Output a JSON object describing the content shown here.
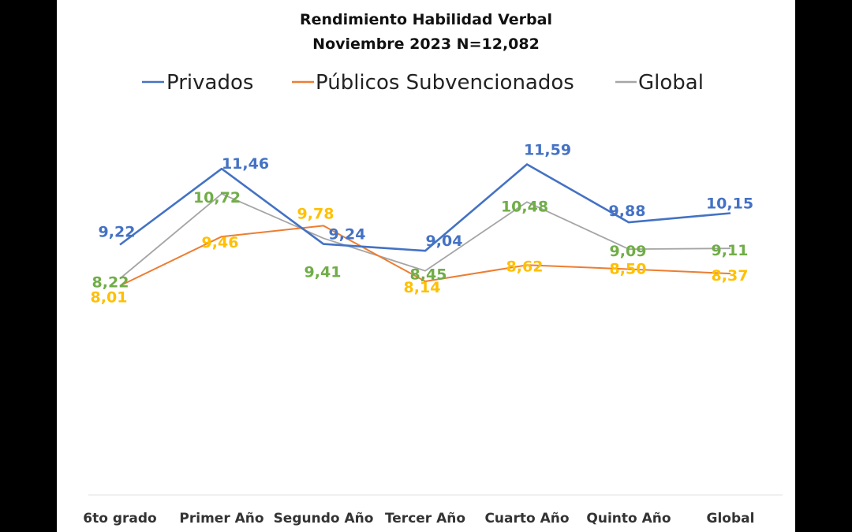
{
  "chart_data": {
    "type": "line",
    "title": "Rendimiento Habilidad Verbal",
    "subtitle": "Noviembre 2023 N=12,082",
    "categories": [
      "6to grado",
      "Primer Año",
      "Segundo Año",
      "Tercer Año",
      "Cuarto Año",
      "Quinto Año",
      "Global"
    ],
    "series": [
      {
        "name": "Privados",
        "color": "#4472C4",
        "values": [
          9.22,
          11.46,
          9.24,
          9.04,
          11.59,
          9.88,
          10.15
        ]
      },
      {
        "name": "Públicos Subvencionados",
        "color": "#ED7D31",
        "values": [
          8.01,
          9.46,
          9.78,
          8.14,
          8.62,
          8.5,
          8.37
        ]
      },
      {
        "name": "Global",
        "color": "#A5A5A5",
        "values": [
          8.22,
          10.72,
          9.41,
          8.45,
          10.48,
          9.09,
          9.11
        ]
      }
    ],
    "data_labels": [
      {
        "series": "Privados",
        "color": "#4472C4",
        "text": [
          "9,22",
          "11,46",
          "9,24",
          "9,04",
          "11,59",
          "9,88",
          "10,15"
        ]
      },
      {
        "series": "Públicos Subvencionados",
        "color": "#FFC000",
        "text": [
          "8,01",
          "9,46",
          "9,78",
          "8,14",
          "8,62",
          "8,50",
          "8,37"
        ]
      },
      {
        "series": "Global",
        "color": "#70AD47",
        "text": [
          "8,22",
          "10,72",
          "9,41",
          "8,45",
          "10,48",
          "9,09",
          "9,11"
        ]
      }
    ],
    "ylim": [
      4,
      13
    ],
    "grid": false,
    "legend_position": "top"
  }
}
